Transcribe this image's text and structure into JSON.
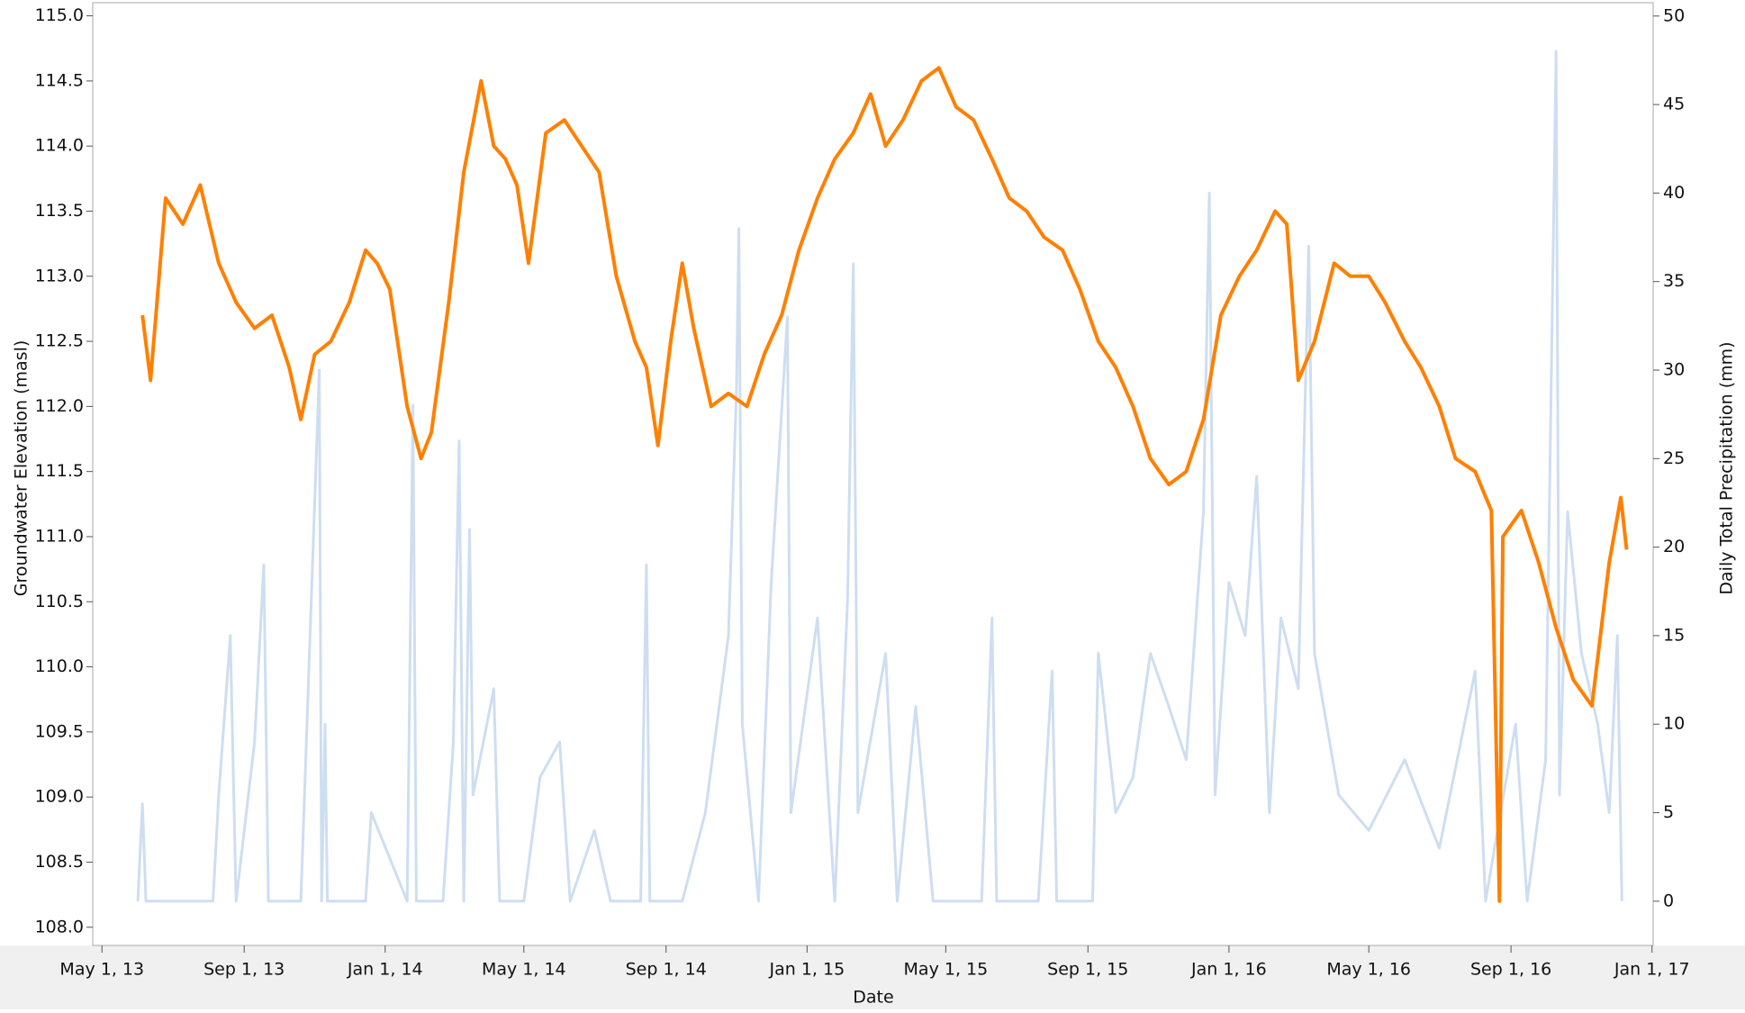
{
  "chart_data": {
    "type": "line",
    "xlabel": "Date",
    "ylabel": "Groundwater Elevation (masl)",
    "y2label": "Daily Total Precipitation (mm)",
    "xlim": [
      "2013-04-23",
      "2017-01-02"
    ],
    "xticks": [
      {
        "value": "2013-05-01",
        "label": "May 1, 13"
      },
      {
        "value": "2013-09-01",
        "label": "Sep 1, 13"
      },
      {
        "value": "2014-01-01",
        "label": "Jan 1, 14"
      },
      {
        "value": "2014-05-01",
        "label": "May 1, 14"
      },
      {
        "value": "2014-09-01",
        "label": "Sep 1, 14"
      },
      {
        "value": "2015-01-01",
        "label": "Jan 1, 15"
      },
      {
        "value": "2015-05-01",
        "label": "May 1, 15"
      },
      {
        "value": "2015-09-01",
        "label": "Sep 1, 15"
      },
      {
        "value": "2016-01-01",
        "label": "Jan 1, 16"
      },
      {
        "value": "2016-05-01",
        "label": "May 1, 16"
      },
      {
        "value": "2016-09-01",
        "label": "Sep 1, 16"
      },
      {
        "value": "2017-01-01",
        "label": "Jan 1, 17"
      }
    ],
    "ylim": [
      107.86,
      115.08
    ],
    "yticks": [
      {
        "value": 108,
        "label": "108.0"
      },
      108.5,
      {
        "value": 109,
        "label": "109.0"
      },
      109.5,
      {
        "value": 110,
        "label": "110.0"
      },
      110.5,
      {
        "value": 111,
        "label": "111.0"
      },
      111.5,
      {
        "value": 112,
        "label": "112.0"
      },
      112.5,
      {
        "value": 113,
        "label": "113.0"
      },
      113.5,
      {
        "value": 114,
        "label": "114.0"
      },
      114.5,
      {
        "value": 115,
        "label": "115.0"
      }
    ],
    "y2lim": [
      -2.5,
      50.6
    ],
    "y2ticks": [
      0,
      5,
      10,
      15,
      20,
      25,
      30,
      35,
      40,
      45,
      50
    ],
    "series": [
      {
        "name": "Daily Total Precipitation",
        "axis": "y2",
        "color": "#c9daf0",
        "x": [
          "2013-06-01",
          "2013-06-05",
          "2013-06-08",
          "2013-08-05",
          "2013-08-10",
          "2013-08-20",
          "2013-08-25",
          "2013-09-10",
          "2013-09-18",
          "2013-09-22",
          "2013-10-05",
          "2013-10-20",
          "2013-11-05",
          "2013-11-07",
          "2013-11-10",
          "2013-11-12",
          "2013-12-15",
          "2013-12-20",
          "2014-01-20",
          "2014-01-25",
          "2014-01-28",
          "2014-02-20",
          "2014-03-01",
          "2014-03-06",
          "2014-03-10",
          "2014-03-15",
          "2014-03-18",
          "2014-04-05",
          "2014-04-10",
          "2014-05-01",
          "2014-05-15",
          "2014-06-01",
          "2014-06-10",
          "2014-07-01",
          "2014-07-15",
          "2014-08-10",
          "2014-08-15",
          "2014-08-18",
          "2014-09-15",
          "2014-10-05",
          "2014-10-25",
          "2014-11-01",
          "2014-11-03",
          "2014-11-06",
          "2014-11-20",
          "2014-12-01",
          "2014-12-15",
          "2014-12-18",
          "2015-01-10",
          "2015-01-25",
          "2015-02-05",
          "2015-02-10",
          "2015-02-14",
          "2015-03-10",
          "2015-03-20",
          "2015-04-05",
          "2015-04-20",
          "2015-06-01",
          "2015-06-10",
          "2015-06-14",
          "2015-07-20",
          "2015-08-01",
          "2015-08-05",
          "2015-09-05",
          "2015-09-10",
          "2015-09-25",
          "2015-10-10",
          "2015-10-25",
          "2015-11-10",
          "2015-11-25",
          "2015-12-10",
          "2015-12-15",
          "2015-12-20",
          "2016-01-01",
          "2016-01-15",
          "2016-01-25",
          "2016-02-05",
          "2016-02-15",
          "2016-03-01",
          "2016-03-10",
          "2016-03-15",
          "2016-04-05",
          "2016-05-01",
          "2016-06-01",
          "2016-07-01",
          "2016-08-01",
          "2016-08-10",
          "2016-09-05",
          "2016-09-15",
          "2016-10-01",
          "2016-10-10",
          "2016-10-13",
          "2016-10-20",
          "2016-11-01",
          "2016-11-15",
          "2016-11-25",
          "2016-12-02",
          "2016-12-06"
        ],
        "values": [
          0,
          5.5,
          0,
          0,
          6,
          15,
          0,
          9,
          19,
          0,
          0,
          0,
          30,
          0,
          10,
          0,
          0,
          5,
          0,
          28,
          0,
          0,
          9,
          26,
          0,
          21,
          6,
          12,
          0,
          0,
          7,
          9,
          0,
          4,
          0,
          0,
          19,
          0,
          0,
          5,
          15,
          29,
          38,
          10,
          0,
          18,
          33,
          5,
          16,
          0,
          17,
          36,
          5,
          14,
          0,
          11,
          0,
          0,
          16,
          0,
          0,
          13,
          0,
          0,
          14,
          5,
          7,
          14,
          11,
          8,
          22,
          40,
          6,
          18,
          15,
          24,
          5,
          16,
          12,
          37,
          14,
          6,
          4,
          8,
          3,
          13,
          0,
          10,
          0,
          8,
          48,
          6,
          22,
          14,
          10,
          5,
          15,
          0
        ]
      },
      {
        "name": "Groundwater Elevation",
        "axis": "y",
        "color": "#ff8000",
        "x": [
          "2013-06-05",
          "2013-06-12",
          "2013-06-25",
          "2013-07-10",
          "2013-07-25",
          "2013-08-10",
          "2013-08-25",
          "2013-09-10",
          "2013-09-25",
          "2013-10-10",
          "2013-10-20",
          "2013-11-01",
          "2013-11-15",
          "2013-12-01",
          "2013-12-15",
          "2013-12-25",
          "2014-01-05",
          "2014-01-20",
          "2014-02-01",
          "2014-02-10",
          "2014-02-25",
          "2014-03-10",
          "2014-03-25",
          "2014-04-05",
          "2014-04-15",
          "2014-04-25",
          "2014-05-05",
          "2014-05-20",
          "2014-06-05",
          "2014-06-20",
          "2014-07-05",
          "2014-07-20",
          "2014-08-05",
          "2014-08-15",
          "2014-08-25",
          "2014-09-05",
          "2014-09-15",
          "2014-09-25",
          "2014-10-10",
          "2014-10-25",
          "2014-11-10",
          "2014-11-25",
          "2014-12-10",
          "2014-12-25",
          "2015-01-10",
          "2015-01-25",
          "2015-02-10",
          "2015-02-25",
          "2015-03-10",
          "2015-03-25",
          "2015-04-10",
          "2015-04-25",
          "2015-05-10",
          "2015-05-25",
          "2015-06-10",
          "2015-06-25",
          "2015-07-10",
          "2015-07-25",
          "2015-08-10",
          "2015-08-25",
          "2015-09-10",
          "2015-09-25",
          "2015-10-10",
          "2015-10-25",
          "2015-11-10",
          "2015-11-25",
          "2015-12-10",
          "2015-12-25",
          "2016-01-10",
          "2016-01-25",
          "2016-02-10",
          "2016-02-20",
          "2016-03-01",
          "2016-03-15",
          "2016-04-01",
          "2016-04-15",
          "2016-05-01",
          "2016-05-15",
          "2016-06-01",
          "2016-06-15",
          "2016-07-01",
          "2016-07-15",
          "2016-08-01",
          "2016-08-15",
          "2016-08-22",
          "2016-08-25",
          "2016-09-10",
          "2016-09-25",
          "2016-10-10",
          "2016-10-25",
          "2016-11-10",
          "2016-11-25",
          "2016-12-05",
          "2016-12-10"
        ],
        "values": [
          112.7,
          112.2,
          113.6,
          113.4,
          113.7,
          113.1,
          112.8,
          112.6,
          112.7,
          112.3,
          111.9,
          112.4,
          112.5,
          112.8,
          113.2,
          113.1,
          112.9,
          112.0,
          111.6,
          111.8,
          112.8,
          113.8,
          114.5,
          114.0,
          113.9,
          113.7,
          113.1,
          114.1,
          114.2,
          114.0,
          113.8,
          113.0,
          112.5,
          112.3,
          111.7,
          112.5,
          113.1,
          112.6,
          112.0,
          112.1,
          112.0,
          112.4,
          112.7,
          113.2,
          113.6,
          113.9,
          114.1,
          114.4,
          114.0,
          114.2,
          114.5,
          114.6,
          114.3,
          114.2,
          113.9,
          113.6,
          113.5,
          113.3,
          113.2,
          112.9,
          112.5,
          112.3,
          112.0,
          111.6,
          111.4,
          111.5,
          111.9,
          112.7,
          113.0,
          113.2,
          113.5,
          113.4,
          112.2,
          112.5,
          113.1,
          113.0,
          113.0,
          112.8,
          112.5,
          112.3,
          112.0,
          111.6,
          111.5,
          111.2,
          108.2,
          111.0,
          111.2,
          110.8,
          110.3,
          109.9,
          109.7,
          110.8,
          111.3,
          110.9
        ]
      }
    ]
  }
}
